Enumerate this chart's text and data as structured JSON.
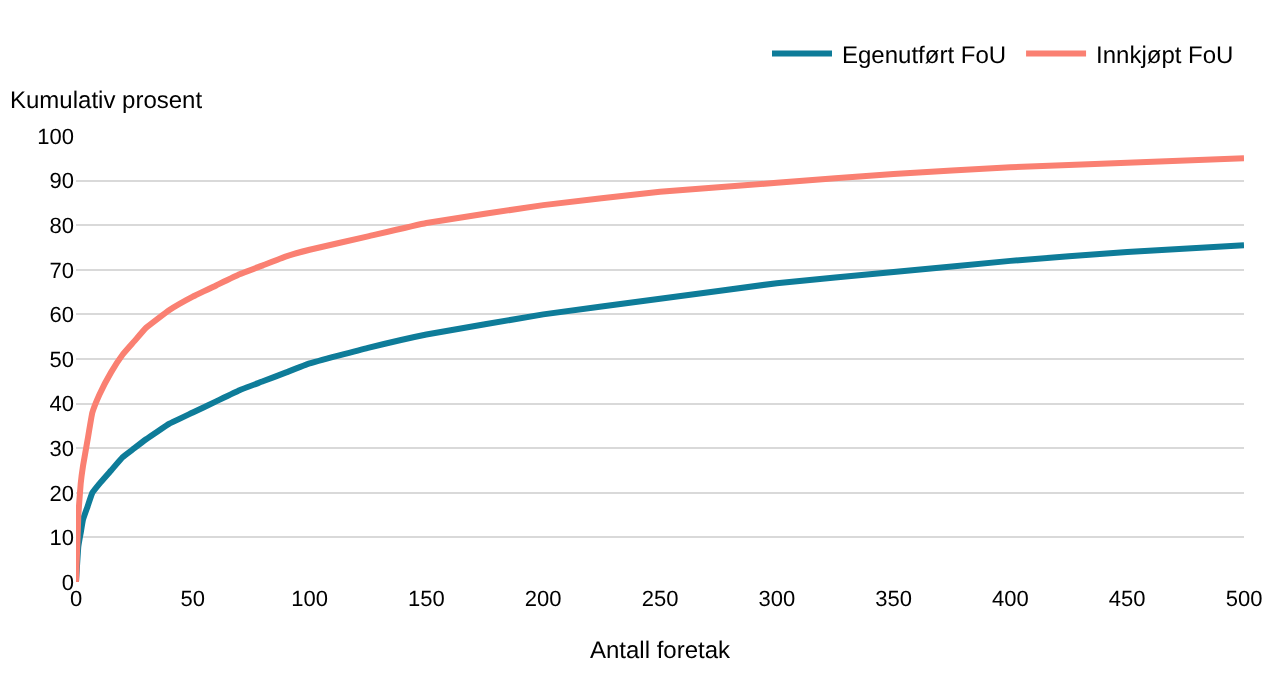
{
  "chart_data": {
    "type": "line",
    "ylabel": "Kumulativ prosent",
    "xlabel": "Antall foretak",
    "x": [
      0,
      1,
      2,
      3,
      5,
      7,
      10,
      15,
      20,
      25,
      30,
      40,
      50,
      60,
      70,
      80,
      90,
      100,
      125,
      150,
      200,
      250,
      300,
      350,
      400,
      450,
      500
    ],
    "series": [
      {
        "name": "Egenutført FoU",
        "color": "#0e7c99",
        "values": [
          0,
          8,
          11,
          14,
          17,
          20,
          22,
          25,
          28,
          30,
          32,
          35.5,
          38,
          40.5,
          43,
          45,
          47,
          49,
          52.5,
          55.5,
          60,
          63.5,
          67,
          69.5,
          72,
          74,
          75.5
        ]
      },
      {
        "name": "Innkjøpt FoU",
        "color": "#fa8072",
        "values": [
          0,
          15,
          22,
          26,
          32,
          38,
          42,
          47,
          51,
          54,
          57,
          61,
          64,
          66.5,
          69,
          71,
          73,
          74.5,
          77.5,
          80.5,
          84.5,
          87.5,
          89.5,
          91.5,
          93,
          94,
          95
        ]
      }
    ],
    "xlim": [
      0,
      500
    ],
    "xticks": [
      0,
      50,
      100,
      150,
      200,
      250,
      300,
      350,
      400,
      450,
      500
    ],
    "ylim": [
      0,
      100
    ],
    "yticks": [
      0,
      10,
      20,
      30,
      40,
      50,
      60,
      70,
      80,
      90,
      100
    ],
    "grid": "y",
    "legend": "top right",
    "marker": "none",
    "line_style": "solid"
  }
}
